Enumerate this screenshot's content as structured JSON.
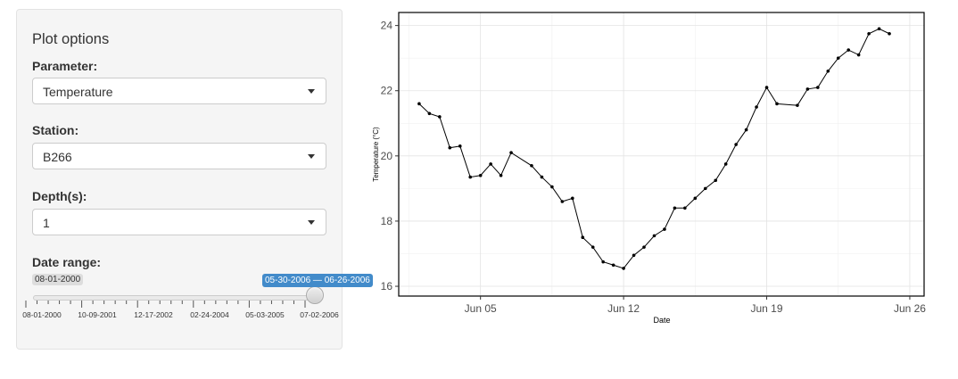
{
  "sidebar": {
    "title": "Plot options",
    "parameter": {
      "label": "Parameter:",
      "value": "Temperature"
    },
    "station": {
      "label": "Station:",
      "value": "B266"
    },
    "depth": {
      "label": "Depth(s):",
      "value": "1"
    },
    "date_range": {
      "label": "Date range:",
      "min_label": "08-01-2000",
      "selected_label": "05-30-2006 — 06-26-2006",
      "tick_labels": [
        "08-01-2000",
        "10-09-2001",
        "12-17-2002",
        "02-24-2004",
        "05-03-2005",
        "07-02-2006"
      ],
      "selected_fraction": [
        0.985,
        0.997
      ]
    }
  },
  "chart_data": {
    "type": "line",
    "xlabel": "Date",
    "ylabel": "Temperature (°C)",
    "x_ticks": [
      "Jun 05",
      "Jun 12",
      "Jun 19",
      "Jun 26"
    ],
    "y_ticks": [
      16,
      18,
      20,
      22,
      24
    ],
    "ylim": [
      15.7,
      24.4
    ],
    "xlim": [
      "2006-06-01",
      "2006-06-26"
    ],
    "grid": true,
    "series": [
      {
        "points": [
          [
            "2006-06-02T00:00",
            21.6
          ],
          [
            "2006-06-02T12:00",
            21.3
          ],
          [
            "2006-06-03T00:00",
            21.2
          ],
          [
            "2006-06-03T12:00",
            20.25
          ],
          [
            "2006-06-04T00:00",
            20.3
          ],
          [
            "2006-06-04T12:00",
            19.35
          ],
          [
            "2006-06-05T00:00",
            19.4
          ],
          [
            "2006-06-05T12:00",
            19.75
          ],
          [
            "2006-06-06T00:00",
            19.4
          ],
          [
            "2006-06-06T12:00",
            20.1
          ],
          [
            "2006-06-07T12:00",
            19.7
          ],
          [
            "2006-06-08T00:00",
            19.35
          ],
          [
            "2006-06-08T12:00",
            19.05
          ],
          [
            "2006-06-09T00:00",
            18.6
          ],
          [
            "2006-06-09T12:00",
            18.7
          ],
          [
            "2006-06-10T00:00",
            17.5
          ],
          [
            "2006-06-10T12:00",
            17.2
          ],
          [
            "2006-06-11T00:00",
            16.75
          ],
          [
            "2006-06-11T12:00",
            16.65
          ],
          [
            "2006-06-12T00:00",
            16.55
          ],
          [
            "2006-06-12T12:00",
            16.95
          ],
          [
            "2006-06-13T00:00",
            17.2
          ],
          [
            "2006-06-13T12:00",
            17.55
          ],
          [
            "2006-06-14T00:00",
            17.75
          ],
          [
            "2006-06-14T12:00",
            18.4
          ],
          [
            "2006-06-15T00:00",
            18.4
          ],
          [
            "2006-06-15T12:00",
            18.7
          ],
          [
            "2006-06-16T00:00",
            19.0
          ],
          [
            "2006-06-16T12:00",
            19.25
          ],
          [
            "2006-06-17T00:00",
            19.75
          ],
          [
            "2006-06-17T12:00",
            20.35
          ],
          [
            "2006-06-18T00:00",
            20.8
          ],
          [
            "2006-06-18T12:00",
            21.5
          ],
          [
            "2006-06-19T00:00",
            22.1
          ],
          [
            "2006-06-19T12:00",
            21.6
          ],
          [
            "2006-06-20T12:00",
            21.55
          ],
          [
            "2006-06-21T00:00",
            22.05
          ],
          [
            "2006-06-21T12:00",
            22.1
          ],
          [
            "2006-06-22T00:00",
            22.6
          ],
          [
            "2006-06-22T12:00",
            23.0
          ],
          [
            "2006-06-23T00:00",
            23.25
          ],
          [
            "2006-06-23T12:00",
            23.1
          ],
          [
            "2006-06-24T00:00",
            23.75
          ],
          [
            "2006-06-24T12:00",
            23.9
          ],
          [
            "2006-06-25T00:00",
            23.75
          ]
        ]
      }
    ]
  }
}
